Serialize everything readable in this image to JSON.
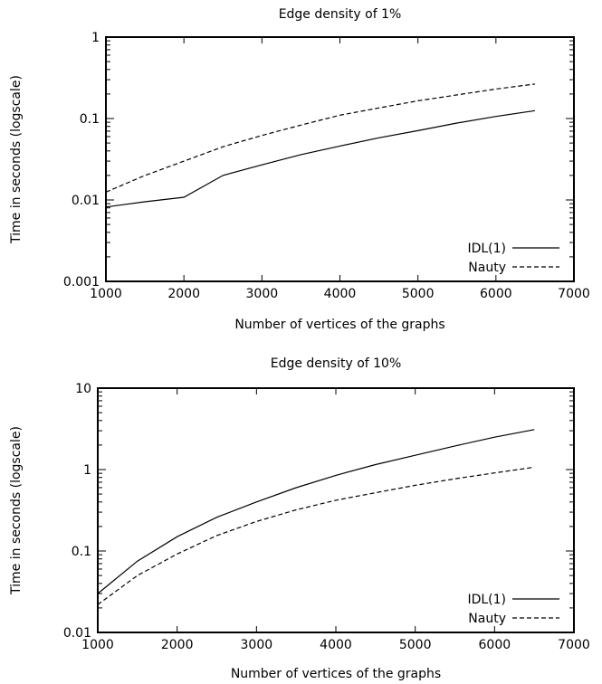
{
  "chart_data": [
    {
      "type": "line",
      "title": "Edge density of 1%",
      "xlabel": "Number of vertices of the graphs",
      "ylabel": "Time in seconds (logscale)",
      "xlim": [
        1000,
        7000
      ],
      "ylim": [
        0.001,
        1
      ],
      "yscale": "log",
      "grid": false,
      "legend_position": "bottom-right",
      "xticks": [
        "1000",
        "2000",
        "3000",
        "4000",
        "5000",
        "6000",
        "7000"
      ],
      "yticks": [
        "0.001",
        "0.01",
        "0.1",
        "1"
      ],
      "x": [
        1000,
        1500,
        2000,
        2500,
        3000,
        3500,
        4000,
        4500,
        5000,
        5500,
        6000,
        6500
      ],
      "series": [
        {
          "name": "IDL(1)",
          "style": "solid",
          "values": [
            0.0082,
            0.0095,
            0.0108,
            0.02,
            0.027,
            0.036,
            0.046,
            0.058,
            0.071,
            0.088,
            0.106,
            0.125
          ]
        },
        {
          "name": "Nauty",
          "style": "dashed",
          "values": [
            0.0125,
            0.02,
            0.03,
            0.045,
            0.062,
            0.083,
            0.11,
            0.135,
            0.165,
            0.195,
            0.23,
            0.265
          ]
        }
      ]
    },
    {
      "type": "line",
      "title": "Edge density of 10%",
      "xlabel": "Number of vertices of the graphs",
      "ylabel": "Time in seconds (logscale)",
      "xlim": [
        1000,
        7000
      ],
      "ylim": [
        0.01,
        10
      ],
      "yscale": "log",
      "grid": false,
      "legend_position": "bottom-right",
      "xticks": [
        "1000",
        "2000",
        "3000",
        "4000",
        "5000",
        "6000",
        "7000"
      ],
      "yticks": [
        "0.01",
        "0.1",
        "1",
        "10"
      ],
      "x": [
        1000,
        1500,
        2000,
        2500,
        3000,
        3500,
        4000,
        4500,
        5000,
        5500,
        6000,
        6500
      ],
      "series": [
        {
          "name": "IDL(1)",
          "style": "solid",
          "values": [
            0.03,
            0.075,
            0.15,
            0.26,
            0.4,
            0.6,
            0.85,
            1.15,
            1.5,
            1.95,
            2.5,
            3.1
          ]
        },
        {
          "name": "Nauty",
          "style": "dashed",
          "values": [
            0.022,
            0.05,
            0.092,
            0.155,
            0.23,
            0.32,
            0.42,
            0.52,
            0.64,
            0.77,
            0.91,
            1.07
          ]
        }
      ]
    }
  ]
}
